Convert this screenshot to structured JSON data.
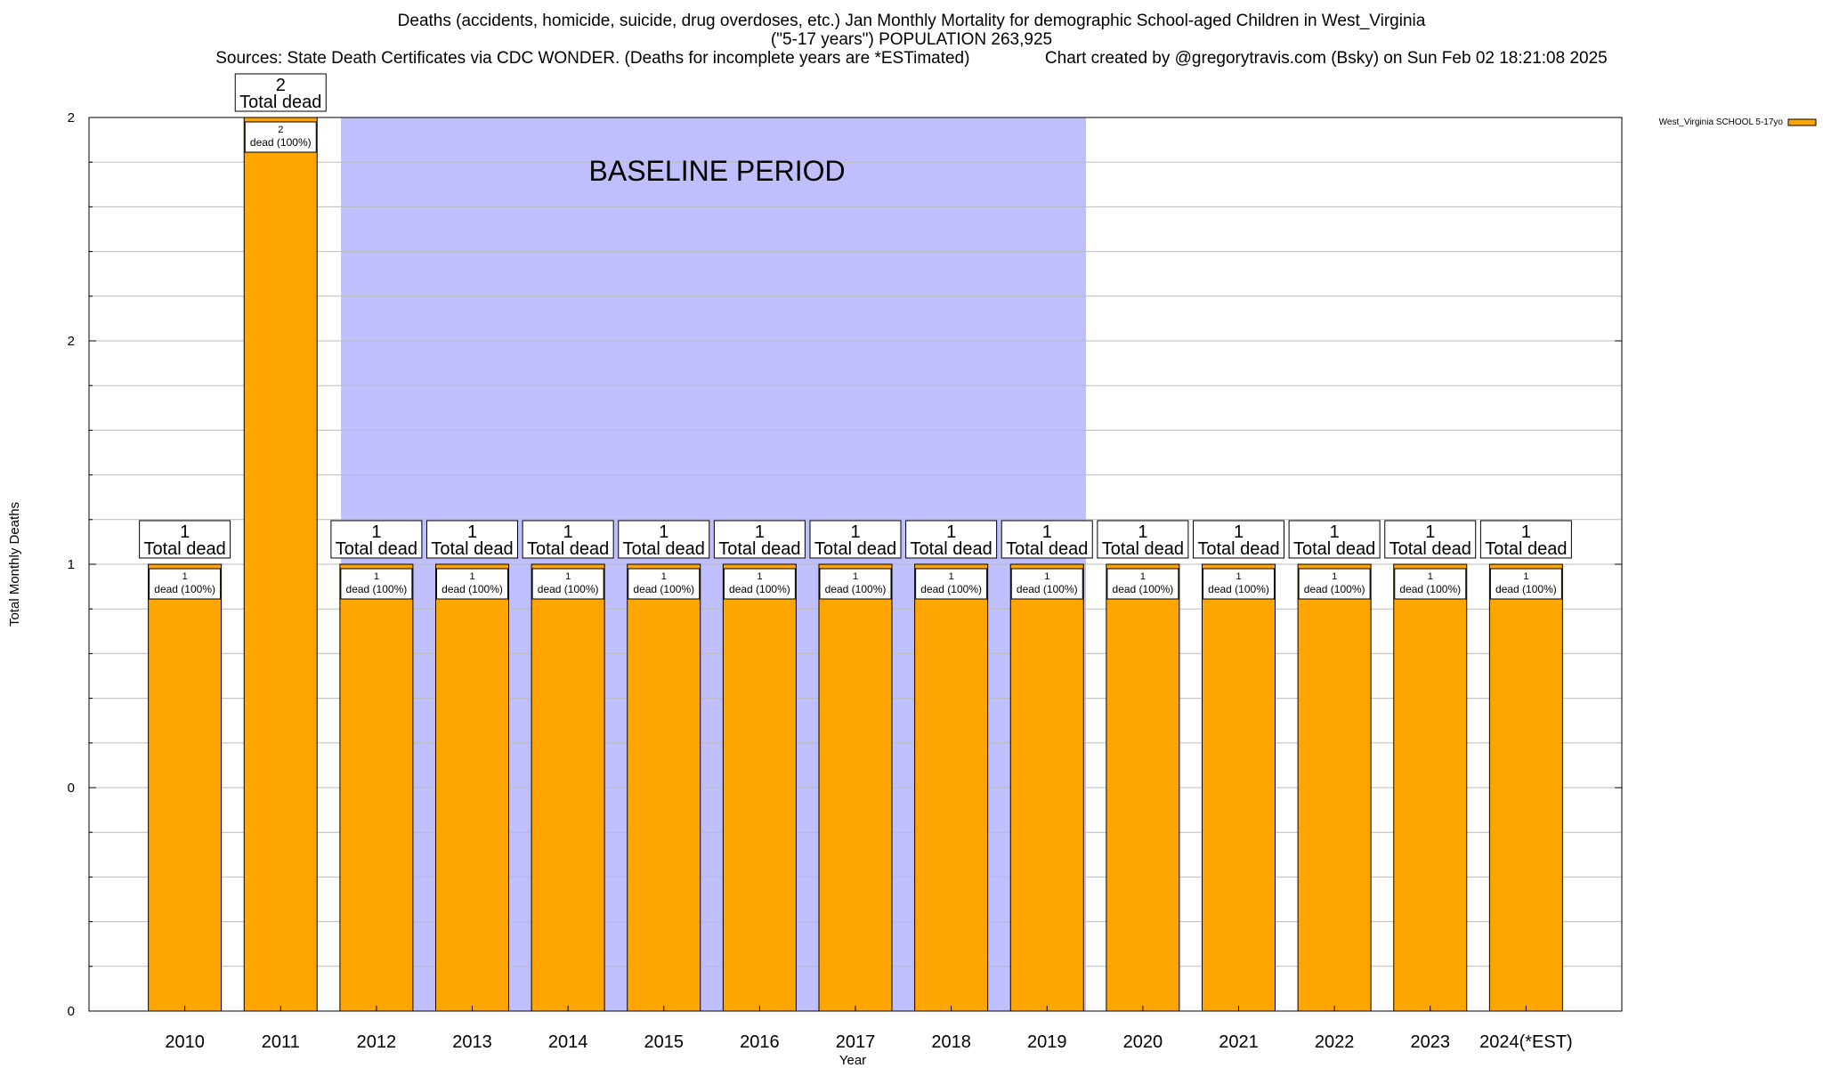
{
  "title": {
    "line1": "Deaths (accidents, homicide, suicide, drug overdoses, etc.) Jan Monthly Mortality for demographic School-aged Children in West_Virginia",
    "line2": "(\"5-17 years\") POPULATION 263,925",
    "line3": "Sources: State Death Certificates via CDC WONDER. (Deaths for incomplete years are *ESTimated)                Chart created by @gregorytravis.com (Bsky) on Sun Feb 02 18:21:08 2025"
  },
  "chart_data": {
    "type": "bar",
    "title": "Deaths (accidents, homicide, suicide, drug overdoses, etc.) Jan Monthly Mortality for demographic School-aged Children in West_Virginia",
    "xlabel": "Year",
    "ylabel": "Total Monthly Deaths",
    "categories": [
      "2010",
      "2011",
      "2012",
      "2013",
      "2014",
      "2015",
      "2016",
      "2017",
      "2018",
      "2019",
      "2020",
      "2021",
      "2022",
      "2023",
      "2024(*EST)"
    ],
    "series": [
      {
        "name": "West_Virginia SCHOOL 5-17yo",
        "color": "#ffa500",
        "values": [
          1,
          2,
          1,
          1,
          1,
          1,
          1,
          1,
          1,
          1,
          1,
          1,
          1,
          1,
          1
        ]
      }
    ],
    "ylim": [
      0,
      2
    ],
    "yticks": [
      {
        "value": 0,
        "label": "0"
      },
      {
        "value": 0.5,
        "label": "0"
      },
      {
        "value": 1,
        "label": "1"
      },
      {
        "value": 1.5,
        "label": "2"
      },
      {
        "value": 2,
        "label": "2"
      }
    ],
    "grid": true,
    "legend": "top-right",
    "total_labels": [
      "1",
      "2",
      "1",
      "1",
      "1",
      "1",
      "1",
      "1",
      "1",
      "1",
      "1",
      "1",
      "1",
      "1",
      "1"
    ],
    "total_suffix": "Total dead",
    "segment_counts": [
      "1",
      "2",
      "1",
      "1",
      "1",
      "1",
      "1",
      "1",
      "1",
      "1",
      "1",
      "1",
      "1",
      "1",
      "1"
    ],
    "segment_label": "dead (100%)",
    "baseline": {
      "label": "BASELINE PERIOD",
      "start": "2012",
      "end": "2019",
      "color": "#bfbffe"
    }
  }
}
